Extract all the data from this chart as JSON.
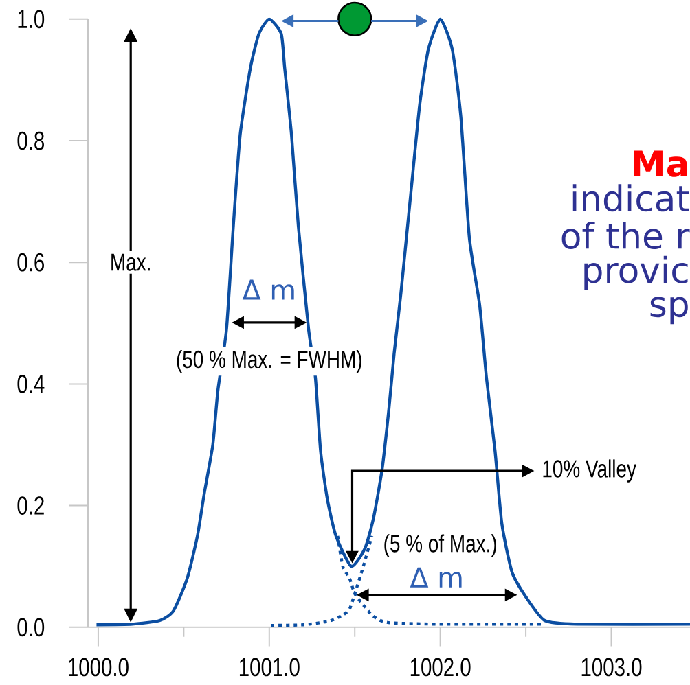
{
  "chart_data": {
    "type": "line",
    "xlim": [
      999.94,
      1003.46
    ],
    "ylim": [
      0,
      1.0
    ],
    "xticks": [
      {
        "value": 1000.0,
        "label": "1000.0"
      },
      {
        "value": 1000.5,
        "label": null
      },
      {
        "value": 1001.0,
        "label": "1001.0"
      },
      {
        "value": 1001.5,
        "label": null
      },
      {
        "value": 1002.0,
        "label": "1002.0"
      },
      {
        "value": 1002.5,
        "label": null
      },
      {
        "value": 1003.0,
        "label": "1003.0"
      }
    ],
    "yticks": [
      {
        "value": 0,
        "label": "0.0"
      },
      {
        "value": 0.2,
        "label": "0.2"
      },
      {
        "value": 0.4,
        "label": "0.4"
      },
      {
        "value": 0.6,
        "label": "0.6"
      },
      {
        "value": 0.8,
        "label": "0.8"
      },
      {
        "value": 1.0,
        "label": "1.0"
      }
    ],
    "grid": false,
    "marker": "none",
    "series": [
      {
        "color": "#0b4ea2",
        "line_style": "solid",
        "x": [
          999.99,
          1000.2,
          1000.36,
          1000.44,
          1000.52,
          1000.58,
          1000.62,
          1000.67,
          1000.7,
          1000.75,
          1000.79,
          1000.83,
          1000.89,
          1000.94,
          1001.0,
          1001.07,
          1001.09,
          1001.13,
          1001.17,
          1001.23,
          1001.27,
          1001.3,
          1001.34,
          1001.39,
          1001.48,
          1001.56,
          1001.61,
          1001.66,
          1001.7,
          1001.73,
          1001.77,
          1001.83,
          1001.88,
          1001.93,
          1002.0,
          1002.07,
          1002.12,
          1002.17,
          1002.23,
          1002.27,
          1002.32,
          1002.36,
          1002.42,
          1002.5,
          1002.61,
          1002.8,
          1003.46
        ],
        "values": [
          0.004,
          0.005,
          0.011,
          0.027,
          0.08,
          0.15,
          0.22,
          0.3,
          0.39,
          0.49,
          0.66,
          0.81,
          0.92,
          0.976,
          1.0,
          0.976,
          0.92,
          0.81,
          0.66,
          0.49,
          0.41,
          0.29,
          0.21,
          0.15,
          0.1,
          0.13,
          0.18,
          0.26,
          0.36,
          0.45,
          0.55,
          0.72,
          0.86,
          0.95,
          1.0,
          0.95,
          0.84,
          0.64,
          0.53,
          0.41,
          0.29,
          0.17,
          0.09,
          0.05,
          0.011,
          0.005,
          0.005
        ]
      },
      {
        "type": "line",
        "color": "#0b4ea2",
        "line_style": "dotted",
        "x": [
          1001.01,
          1001.2,
          1001.35,
          1001.43,
          1001.47,
          1001.5,
          1001.55,
          1001.6
        ],
        "values": [
          0.003,
          0.004,
          0.01,
          0.02,
          0.03,
          0.055,
          0.1,
          0.15
        ]
      },
      {
        "type": "line",
        "color": "#0b4ea2",
        "line_style": "dotted",
        "x": [
          1001.4,
          1001.43,
          1001.47,
          1001.5,
          1001.56,
          1001.6,
          1001.65,
          1001.72,
          1002.0,
          1002.6
        ],
        "values": [
          0.15,
          0.1,
          0.08,
          0.055,
          0.033,
          0.02,
          0.011,
          0.007,
          0.005,
          0.005
        ]
      },
      {
        "type": "scatter",
        "color": "#009933",
        "marker": "circle",
        "x": [
          1001.5
        ],
        "values": [
          1.0
        ]
      }
    ],
    "annotations": [
      "Max.",
      "Δ m",
      "(50 % Max. = FWHM)",
      "10% Valley",
      "(5 % of Max.)",
      "Δ m",
      "Ma",
      "indicat",
      "of the r",
      "provic",
      "sp"
    ]
  }
}
